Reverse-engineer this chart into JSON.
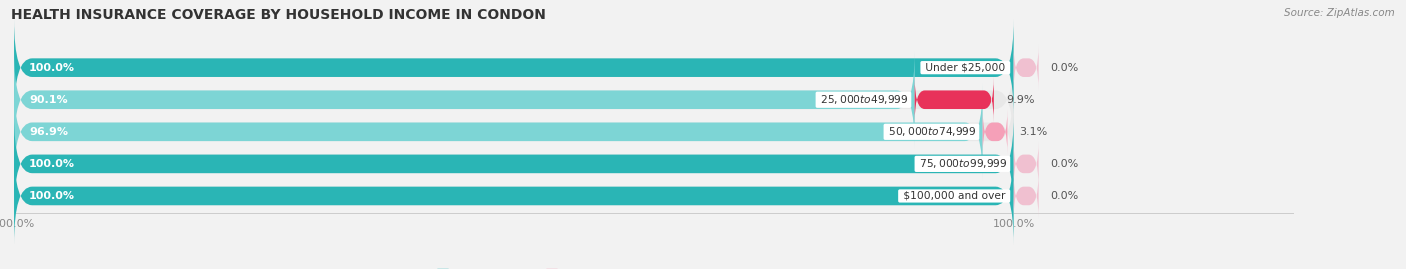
{
  "title": "HEALTH INSURANCE COVERAGE BY HOUSEHOLD INCOME IN CONDON",
  "source": "Source: ZipAtlas.com",
  "categories": [
    "Under $25,000",
    "$25,000 to $49,999",
    "$50,000 to $74,999",
    "$75,000 to $99,999",
    "$100,000 and over"
  ],
  "with_coverage": [
    100.0,
    90.1,
    96.9,
    100.0,
    100.0
  ],
  "without_coverage": [
    0.0,
    9.9,
    3.1,
    0.0,
    0.0
  ],
  "color_with_dark": "#2ab5b5",
  "color_with_light": "#7dd5d5",
  "color_without_dark": "#e8325a",
  "color_without_light": "#f5a0b8",
  "color_without_zero": "#f0c0d0",
  "bar_bg_color": "#e8e8e8",
  "background_color": "#f2f2f2",
  "title_fontsize": 10,
  "label_fontsize": 8,
  "tick_fontsize": 8,
  "legend_fontsize": 8,
  "total_width": 100
}
